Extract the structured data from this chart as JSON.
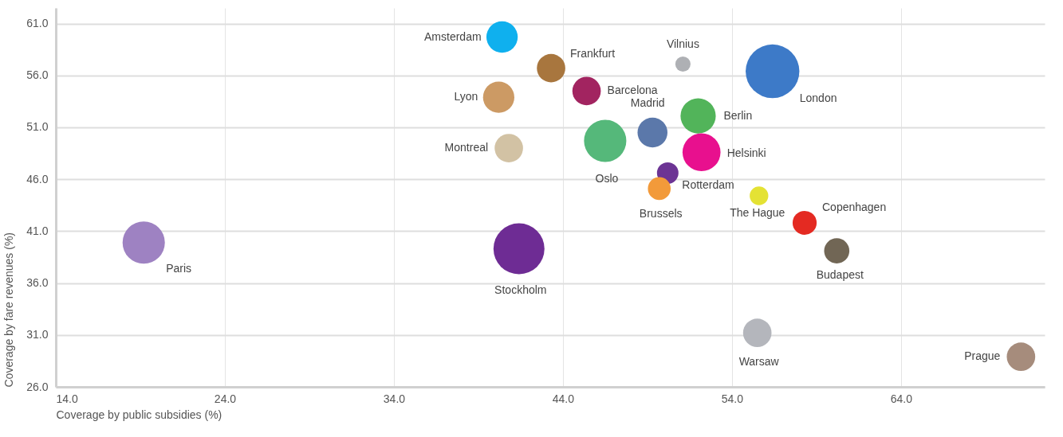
{
  "chart_data": {
    "type": "bubble",
    "xlabel": "Coverage by public subsidies (%)",
    "ylabel": "Coverage by fare revenues (%)",
    "xlim": [
      14,
      72.5
    ],
    "ylim": [
      26,
      62.5
    ],
    "xticks": [
      {
        "value": 14,
        "label": "14.0"
      },
      {
        "value": 24,
        "label": "24.0"
      },
      {
        "value": 34,
        "label": "34.0"
      },
      {
        "value": 44,
        "label": "44.0"
      },
      {
        "value": 54,
        "label": "54.0"
      },
      {
        "value": 64,
        "label": "64.0"
      }
    ],
    "yticks": [
      {
        "value": 26,
        "label": "26.0"
      },
      {
        "value": 31,
        "label": "31.0"
      },
      {
        "value": 36,
        "label": "36.0"
      },
      {
        "value": 41,
        "label": "41.0"
      },
      {
        "value": 46,
        "label": "46.0"
      },
      {
        "value": 51,
        "label": "51.0"
      },
      {
        "value": 56,
        "label": "56.0"
      },
      {
        "value": 61,
        "label": "61.0"
      }
    ],
    "grid": true,
    "legend": false,
    "series": [
      {
        "name": "Amsterdam",
        "color": "#0fb0ee",
        "x": [
          40.4
        ],
        "values": [
          59.7
        ],
        "sizes": [
          0.34
        ]
      },
      {
        "name": "Frankfurt",
        "color": "#a8763e",
        "x": [
          43.3
        ],
        "values": [
          56.7
        ],
        "sizes": [
          0.28
        ]
      },
      {
        "name": "Vilnius",
        "color": "#aeb0b4",
        "x": [
          51.1
        ],
        "values": [
          57.1
        ],
        "sizes": [
          0.08
        ]
      },
      {
        "name": "London",
        "color": "#3d7ac8",
        "x": [
          56.4
        ],
        "values": [
          56.4
        ],
        "sizes": [
          1
        ]
      },
      {
        "name": "Lyon",
        "color": "#cc9a64",
        "x": [
          40.2
        ],
        "values": [
          53.9
        ],
        "sizes": [
          0.34
        ]
      },
      {
        "name": "Barcelona",
        "color": "#a22460",
        "x": [
          45.4
        ],
        "values": [
          54.5
        ],
        "sizes": [
          0.28
        ]
      },
      {
        "name": "Madrid",
        "color": "#5b78aa",
        "x": [
          49.3
        ],
        "values": [
          50.5
        ],
        "sizes": [
          0.31
        ]
      },
      {
        "name": "Berlin",
        "color": "#52b45a",
        "x": [
          52.0
        ],
        "values": [
          52.1
        ],
        "sizes": [
          0.43
        ]
      },
      {
        "name": "Montreal",
        "color": "#d2c2a4",
        "x": [
          40.8
        ],
        "values": [
          49.0
        ],
        "sizes": [
          0.28
        ]
      },
      {
        "name": "Oslo",
        "color": "#55b87a",
        "x": [
          46.5
        ],
        "values": [
          49.7
        ],
        "sizes": [
          0.62
        ]
      },
      {
        "name": "Helsinki",
        "color": "#e8108e",
        "x": [
          52.2
        ],
        "values": [
          48.6
        ],
        "sizes": [
          0.5
        ]
      },
      {
        "name": "Rotterdam",
        "color": "#6c3494",
        "x": [
          50.2
        ],
        "values": [
          46.6
        ],
        "sizes": [
          0.16
        ]
      },
      {
        "name": "Brussels",
        "color": "#f29a3a",
        "x": [
          49.7
        ],
        "values": [
          45.1
        ],
        "sizes": [
          0.18
        ]
      },
      {
        "name": "The Hague",
        "color": "#e4e234",
        "x": [
          55.6
        ],
        "values": [
          44.4
        ],
        "sizes": [
          0.12
        ]
      },
      {
        "name": "Copenhagen",
        "color": "#e42a22",
        "x": [
          58.3
        ],
        "values": [
          41.8
        ],
        "sizes": [
          0.2
        ]
      },
      {
        "name": "Budapest",
        "color": "#716655",
        "x": [
          60.2
        ],
        "values": [
          39.1
        ],
        "sizes": [
          0.22
        ]
      },
      {
        "name": "Paris",
        "color": "#9e82c2",
        "x": [
          19.2
        ],
        "values": [
          39.9
        ],
        "sizes": [
          0.62
        ]
      },
      {
        "name": "Stockholm",
        "color": "#6e2c94",
        "x": [
          41.4
        ],
        "values": [
          39.3
        ],
        "sizes": [
          0.9
        ]
      },
      {
        "name": "Warsaw",
        "color": "#b4b6bc",
        "x": [
          55.5
        ],
        "values": [
          31.2
        ],
        "sizes": [
          0.28
        ]
      },
      {
        "name": "Prague",
        "color": "#a68c7c",
        "x": [
          71.1
        ],
        "values": [
          28.9
        ],
        "sizes": [
          0.28
        ]
      }
    ]
  }
}
